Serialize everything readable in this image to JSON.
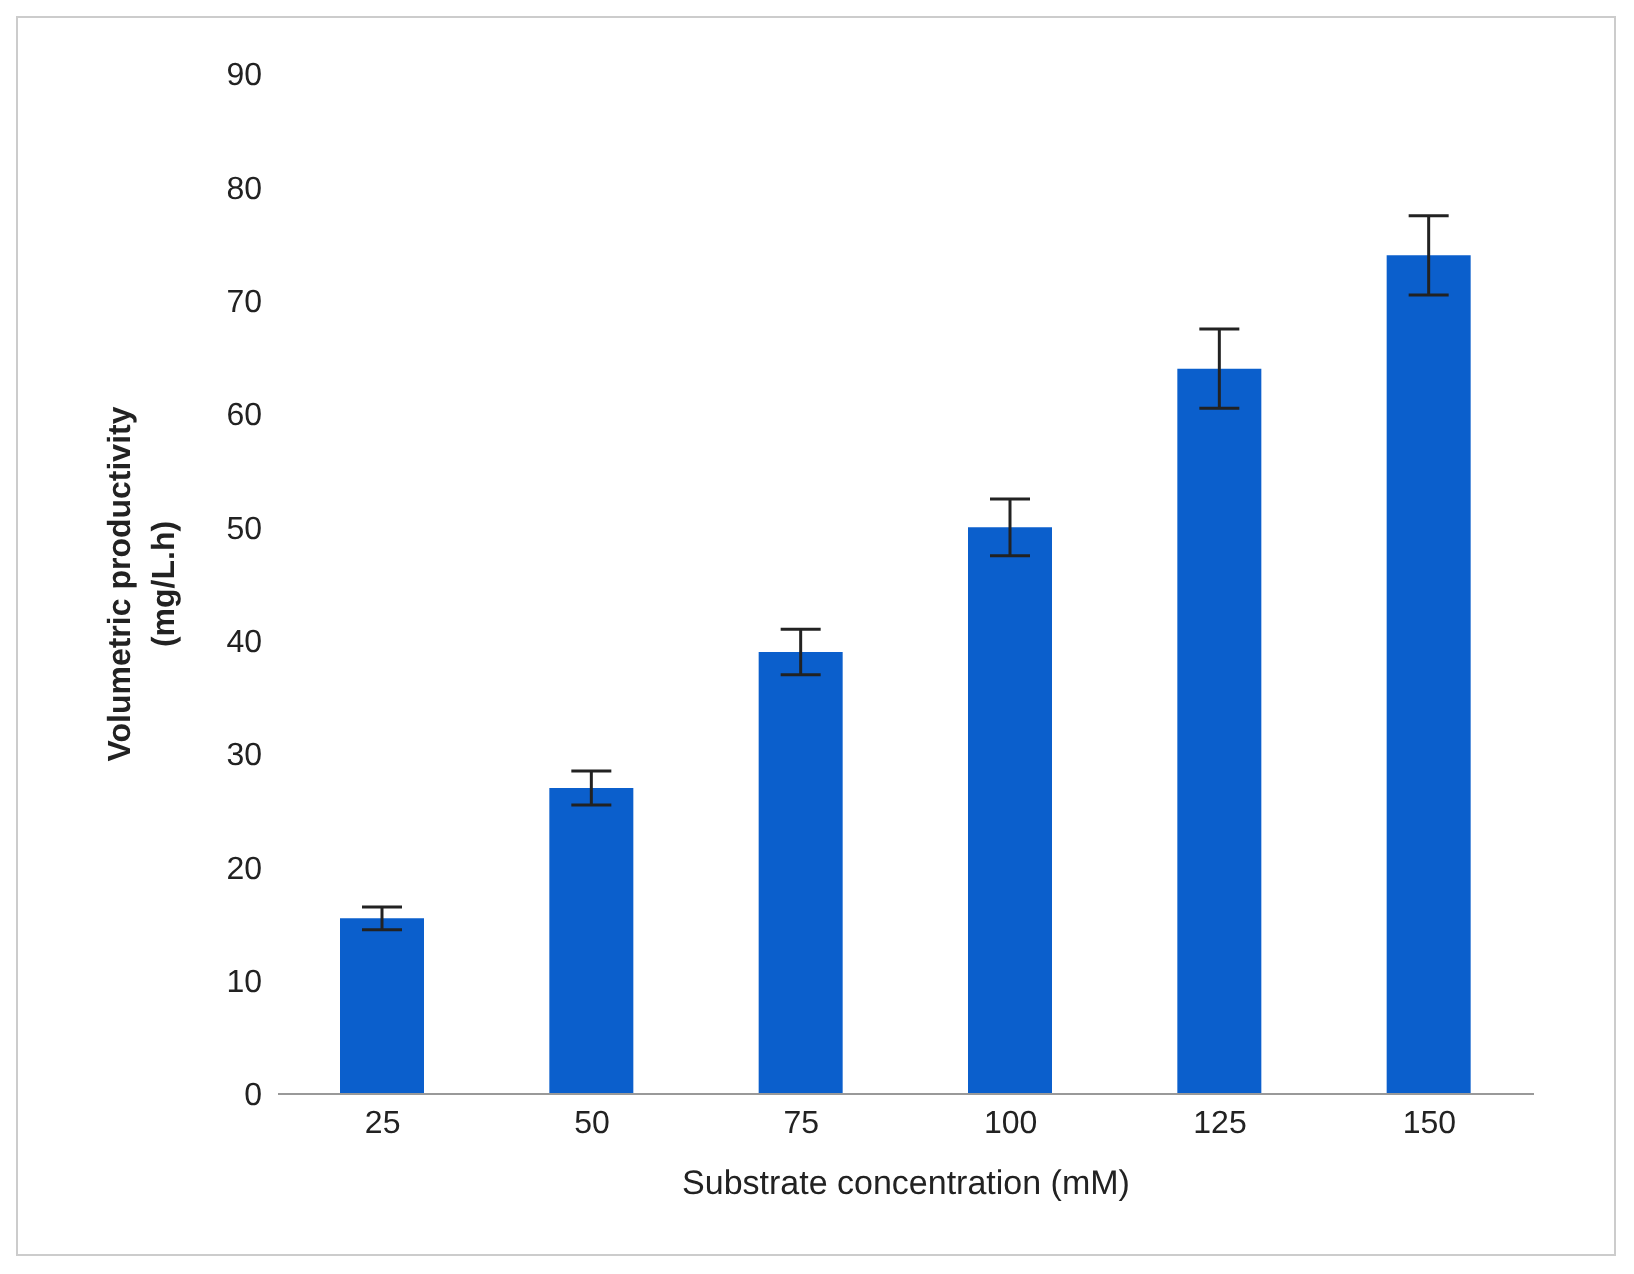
{
  "chart_data": {
    "type": "bar",
    "xlabel": "Substrate concentration (mM)",
    "ylabel": "Volumetric productivity (mg/L.h)",
    "categories": [
      "25",
      "50",
      "75",
      "100",
      "125",
      "150"
    ],
    "values": [
      15.5,
      27,
      39,
      50,
      64,
      74
    ],
    "errors": [
      1,
      1.5,
      2,
      2.5,
      3.5,
      3.5
    ],
    "color": "#0b5fcc",
    "ylim": [
      0,
      90
    ],
    "yticks": [
      0,
      10,
      20,
      30,
      40,
      50,
      60,
      70,
      80,
      90
    ],
    "grid": false,
    "legend": false
  }
}
